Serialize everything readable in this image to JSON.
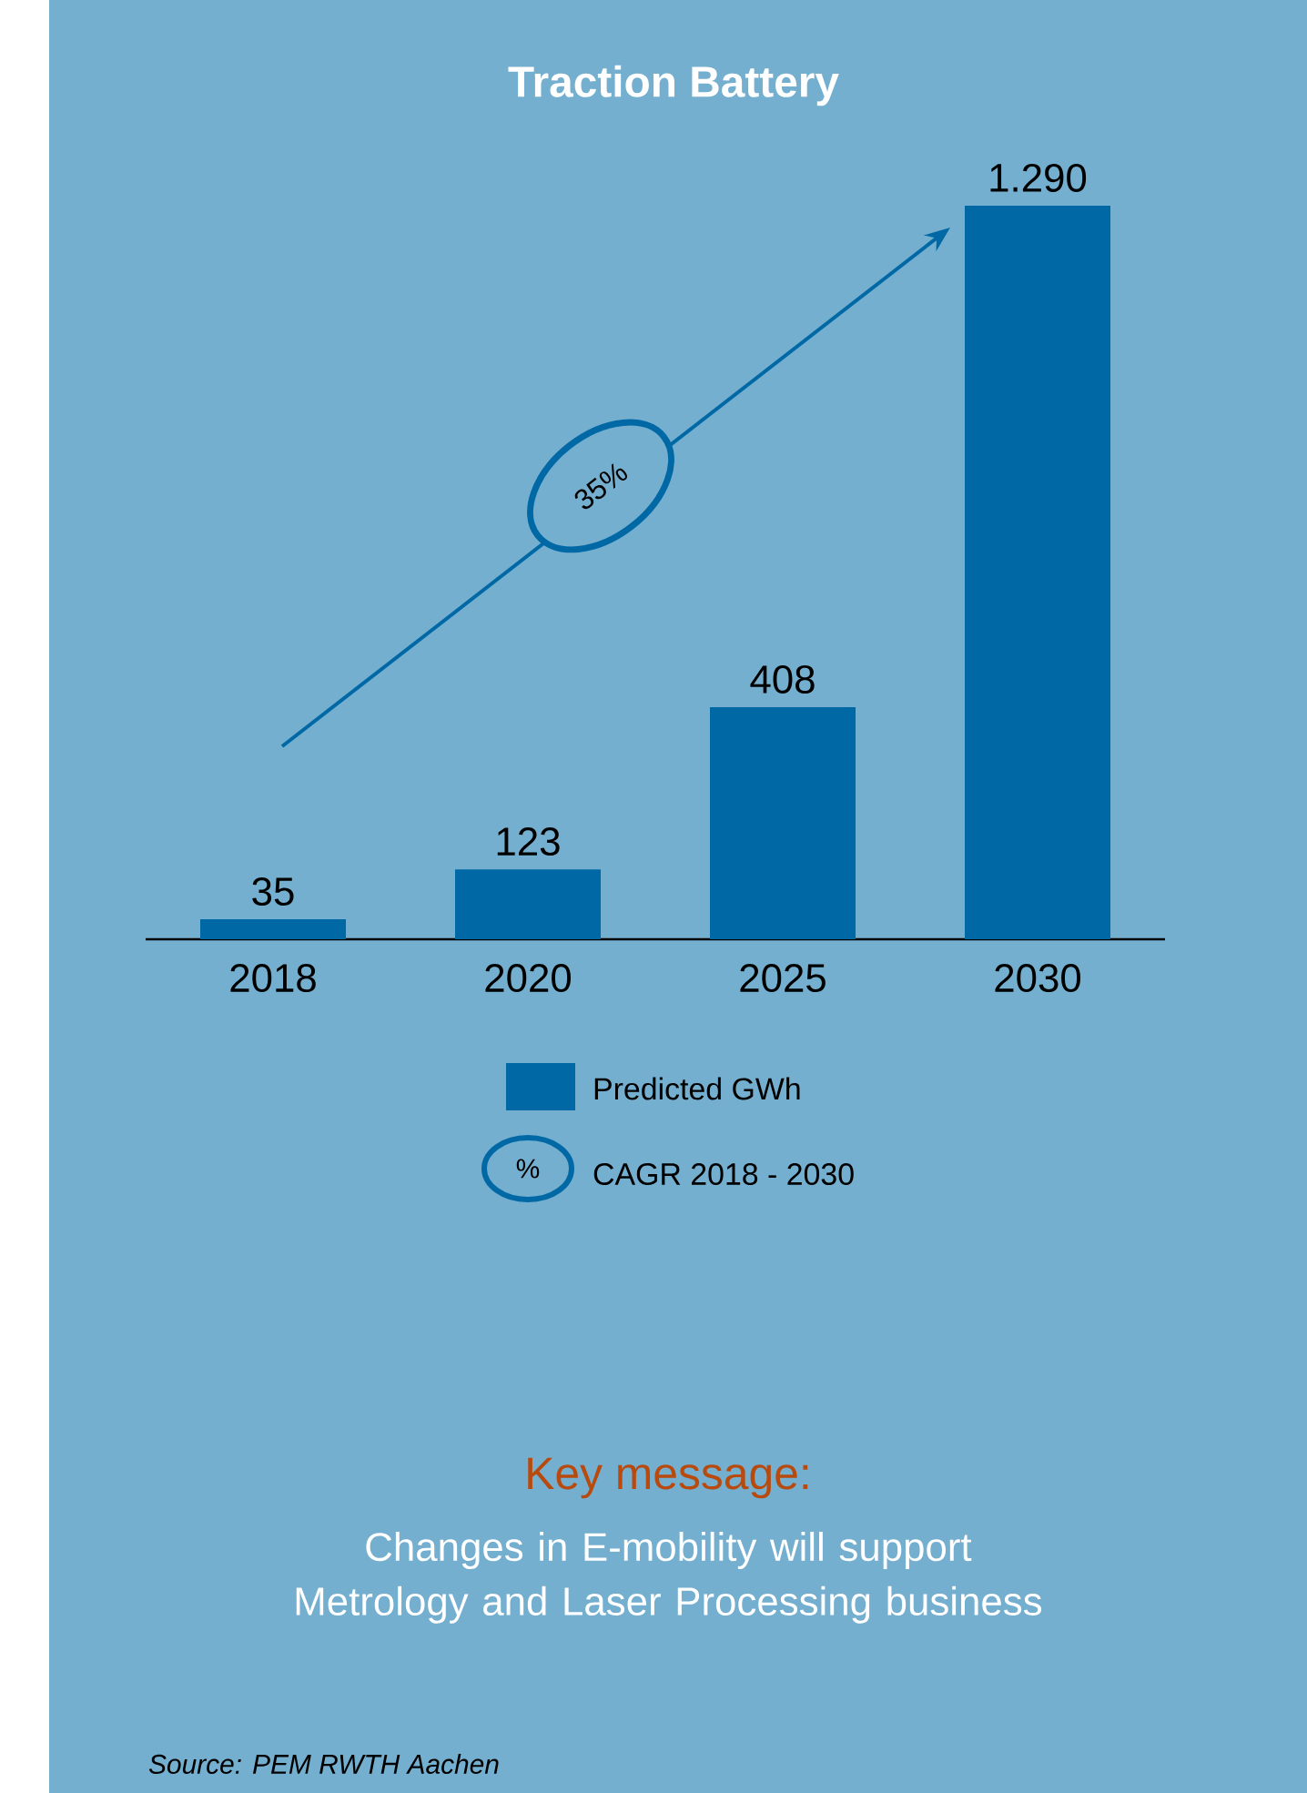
{
  "chart_data": {
    "type": "bar",
    "title": "Traction Battery",
    "categories": [
      "2018",
      "2020",
      "2025",
      "2030"
    ],
    "series": [
      {
        "name": "Predicted GWh",
        "color": "#0069a5",
        "values": [
          35,
          123,
          408,
          1290
        ],
        "value_labels": [
          "35",
          "123",
          "408",
          "1.290"
        ]
      }
    ],
    "legend": "bottom",
    "annotations": [
      "35%",
      "%",
      "CAGR 2018 - 2030",
      "Key message:",
      "Changes in E-mobility will support Metrology and Laser Processing business",
      "Source: PEM RWTH Aachen"
    ]
  }
}
